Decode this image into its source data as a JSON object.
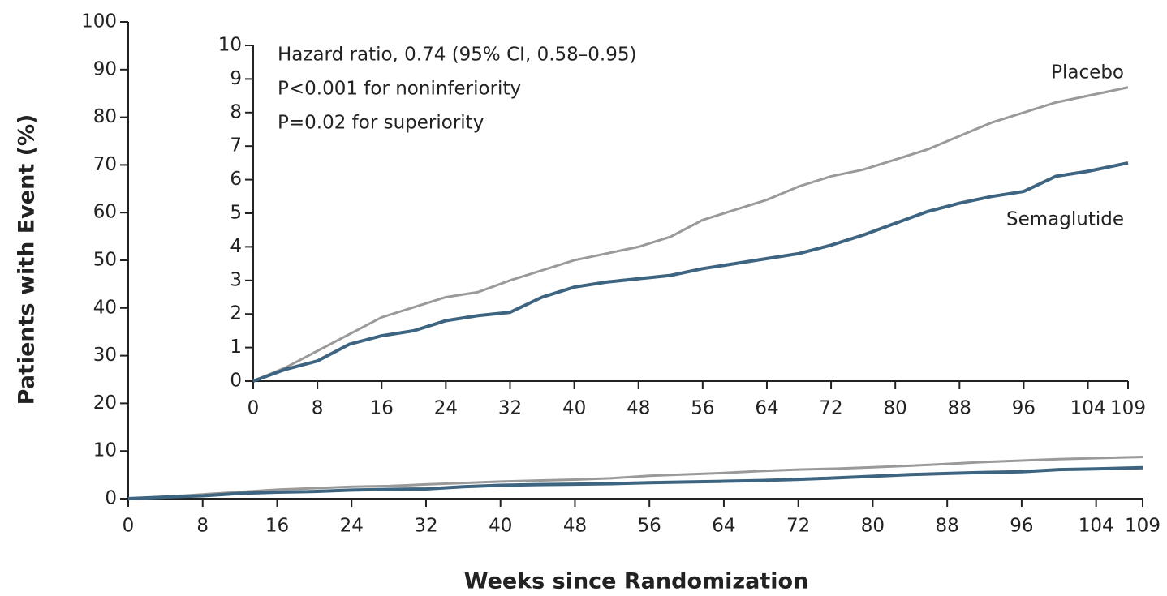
{
  "chart_data": [
    {
      "type": "line",
      "x_label": "Weeks since Randomization",
      "y_label": "Patients with Event (%)",
      "x": [
        0,
        4,
        8,
        12,
        16,
        20,
        24,
        28,
        32,
        36,
        40,
        44,
        48,
        52,
        56,
        60,
        64,
        68,
        72,
        76,
        80,
        84,
        88,
        92,
        96,
        100,
        104,
        109
      ],
      "series": [
        {
          "color": "#9a9a9a",
          "values": [
            0,
            0.4,
            0.9,
            1.4,
            1.9,
            2.2,
            2.5,
            2.65,
            3.0,
            3.3,
            3.6,
            3.8,
            4.0,
            4.3,
            4.8,
            5.1,
            5.4,
            5.8,
            6.1,
            6.3,
            6.6,
            6.9,
            7.3,
            7.7,
            8.0,
            8.3,
            8.5,
            8.75
          ]
        },
        {
          "color": "#3d6480",
          "values": [
            0,
            0.35,
            0.6,
            1.1,
            1.35,
            1.5,
            1.8,
            1.95,
            2.05,
            2.5,
            2.8,
            2.95,
            3.05,
            3.15,
            3.35,
            3.5,
            3.65,
            3.8,
            4.05,
            4.35,
            4.7,
            5.05,
            5.3,
            5.5,
            5.65,
            6.1,
            6.25,
            6.5
          ]
        }
      ],
      "xlim": [
        0,
        109
      ],
      "xticks": [
        0,
        8,
        16,
        24,
        32,
        40,
        48,
        56,
        64,
        72,
        80,
        88,
        96,
        104,
        109
      ],
      "ylim": [
        0,
        100
      ],
      "yticks": [
        0,
        10,
        20,
        30,
        40,
        50,
        60,
        70,
        80,
        90,
        100
      ]
    },
    {
      "type": "line",
      "annotations": [
        "Hazard ratio, 0.74 (95% CI, 0.58–0.95)",
        "P<0.001 for noninferiority",
        "P=0.02 for superiority"
      ],
      "x": [
        0,
        4,
        8,
        12,
        16,
        20,
        24,
        28,
        32,
        36,
        40,
        44,
        48,
        52,
        56,
        60,
        64,
        68,
        72,
        76,
        80,
        84,
        88,
        92,
        96,
        100,
        104,
        109
      ],
      "series": [
        {
          "name": "Placebo",
          "color": "#9a9a9a",
          "values": [
            0,
            0.4,
            0.9,
            1.4,
            1.9,
            2.2,
            2.5,
            2.65,
            3.0,
            3.3,
            3.6,
            3.8,
            4.0,
            4.3,
            4.8,
            5.1,
            5.4,
            5.8,
            6.1,
            6.3,
            6.6,
            6.9,
            7.3,
            7.7,
            8.0,
            8.3,
            8.5,
            8.75
          ]
        },
        {
          "name": "Semaglutide",
          "color": "#3d6480",
          "values": [
            0,
            0.35,
            0.6,
            1.1,
            1.35,
            1.5,
            1.8,
            1.95,
            2.05,
            2.5,
            2.8,
            2.95,
            3.05,
            3.15,
            3.35,
            3.5,
            3.65,
            3.8,
            4.05,
            4.35,
            4.7,
            5.05,
            5.3,
            5.5,
            5.65,
            6.1,
            6.25,
            6.5
          ]
        }
      ],
      "xlim": [
        0,
        109
      ],
      "xticks": [
        0,
        8,
        16,
        24,
        32,
        40,
        48,
        56,
        64,
        72,
        80,
        88,
        96,
        104,
        109
      ],
      "ylim": [
        0,
        10
      ],
      "yticks": [
        0,
        1,
        2,
        3,
        4,
        5,
        6,
        7,
        8,
        9,
        10
      ]
    }
  ]
}
